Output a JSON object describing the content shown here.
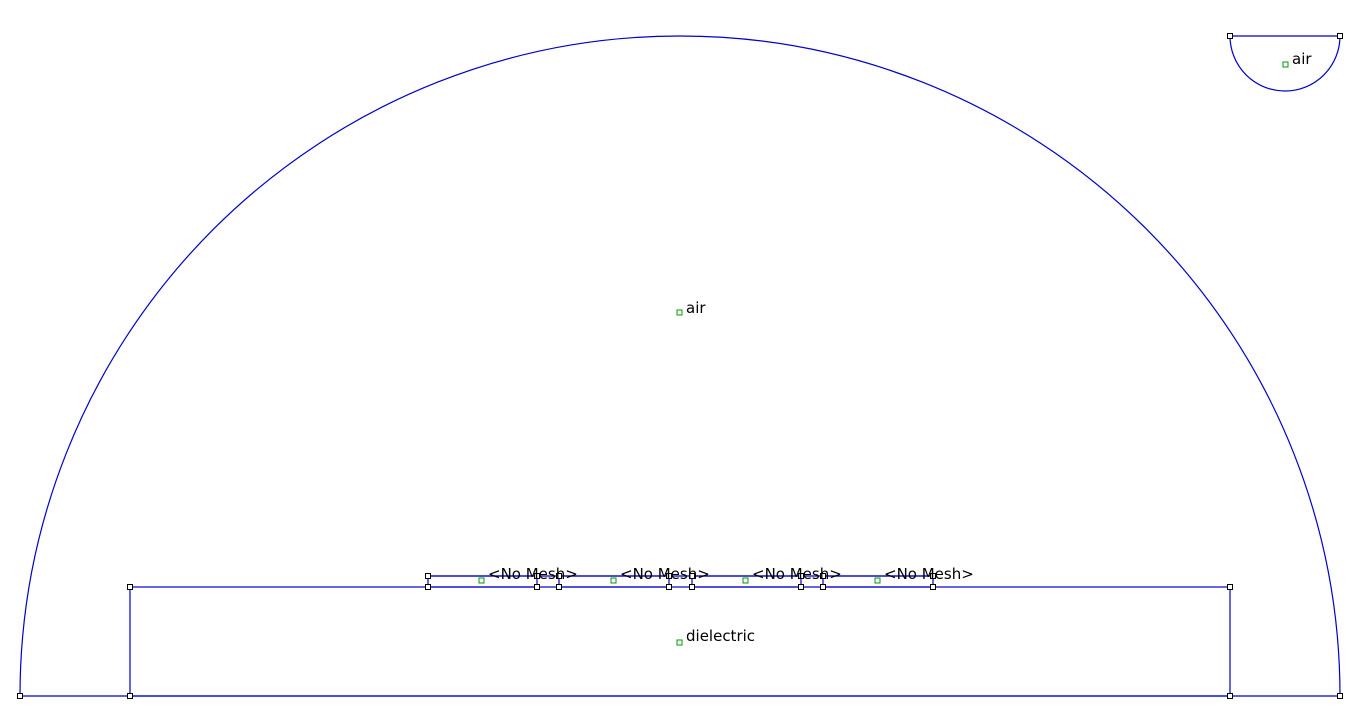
{
  "regions": [
    {
      "id": "air-main",
      "label": "air"
    },
    {
      "id": "air-inset",
      "label": "air"
    },
    {
      "id": "dielectric",
      "label": "dielectric"
    },
    {
      "id": "conductor-1",
      "label": "<No Mesh>"
    },
    {
      "id": "conductor-2",
      "label": "<No Mesh>"
    },
    {
      "id": "conductor-3",
      "label": "<No Mesh>"
    },
    {
      "id": "conductor-4",
      "label": "<No Mesh>"
    }
  ],
  "colors": {
    "edge": "#0000cc",
    "node": "#000000",
    "label_marker": "#009900",
    "background": "#ffffff"
  }
}
